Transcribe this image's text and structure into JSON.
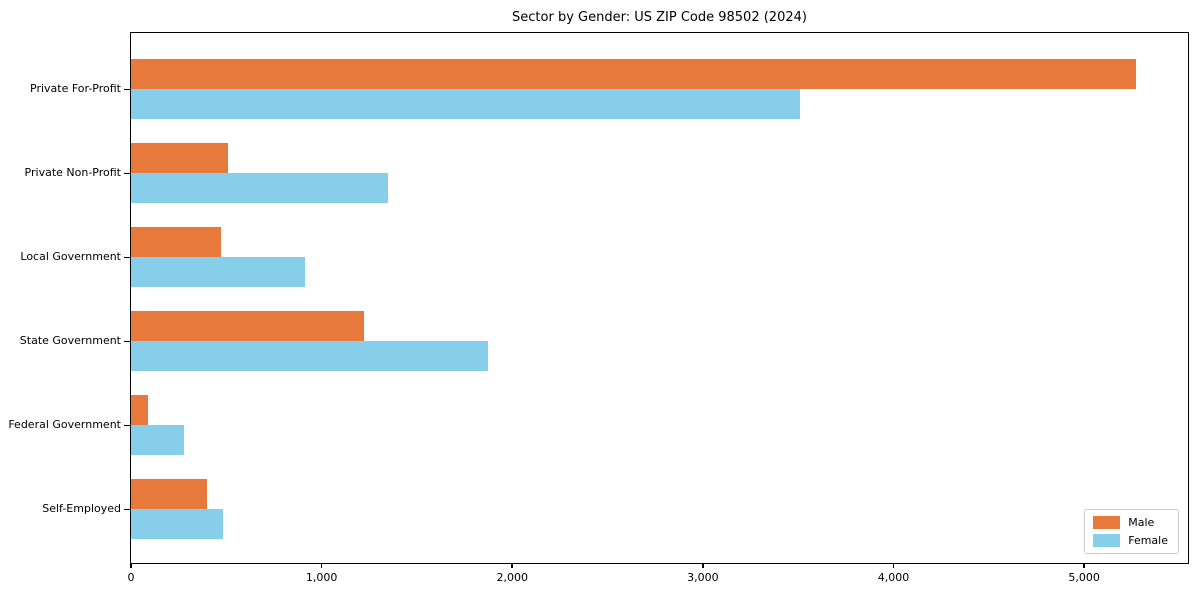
{
  "title": "Sector by Gender: US ZIP Code 98502 (2024)",
  "chart_data": {
    "type": "bar",
    "orientation": "horizontal",
    "title": "Sector by Gender: US ZIP Code 98502 (2024)",
    "xlabel": "",
    "ylabel": "",
    "categories": [
      "Private For-Profit",
      "Private Non-Profit",
      "Local Government",
      "State Government",
      "Federal Government",
      "Self-Employed"
    ],
    "series": [
      {
        "name": "Male",
        "color": "#e8793c",
        "values": [
          5270,
          510,
          470,
          1220,
          90,
          400
        ]
      },
      {
        "name": "Female",
        "color": "#87ceeb",
        "values": [
          3510,
          1350,
          910,
          1870,
          280,
          480
        ]
      }
    ],
    "xlim": [
      0,
      5545
    ],
    "xticks": [
      0,
      1000,
      2000,
      3000,
      4000,
      5000
    ],
    "xtick_labels": [
      "0",
      "1,000",
      "2,000",
      "3,000",
      "4,000",
      "5,000"
    ],
    "grid": false,
    "legend_position": "lower right",
    "frame_color": "#000000",
    "background_color": "#ffffff"
  }
}
